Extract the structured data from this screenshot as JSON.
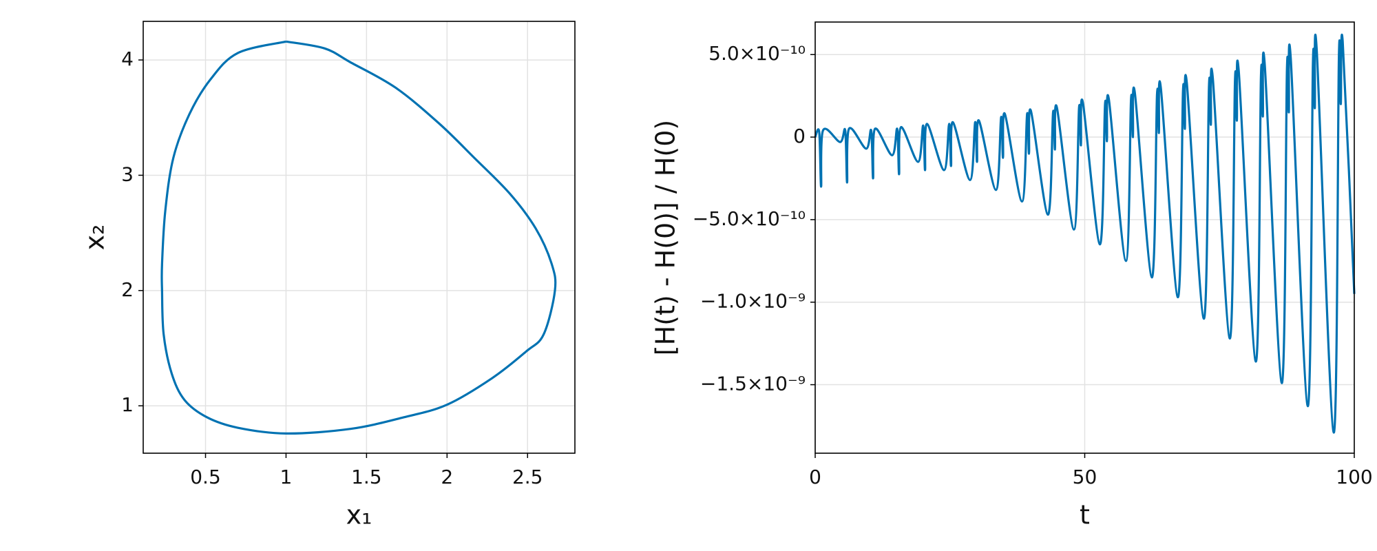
{
  "chart_data": [
    {
      "type": "line",
      "xlabel": "x₁",
      "ylabel": "x₂",
      "xlim": [
        0.113,
        2.794
      ],
      "ylim": [
        0.589,
        4.335
      ],
      "xticks": [
        0.5,
        1.0,
        1.5,
        2.0,
        2.5
      ],
      "yticks": [
        1,
        2,
        3,
        4
      ],
      "grid": true,
      "x": [
        1.0,
        0.7,
        0.53,
        0.4,
        0.3,
        0.25,
        0.23,
        0.23,
        0.24,
        0.29,
        0.37,
        0.51,
        0.7,
        1.0,
        1.4,
        1.73,
        2.0,
        2.28,
        2.49,
        2.6,
        2.67,
        2.65,
        2.55,
        2.39,
        2.17,
        1.95,
        1.68,
        1.4,
        1.24,
        1.0
      ],
      "series": [
        {
          "color": "#0072b2",
          "values": [
            4.16,
            4.06,
            3.83,
            3.53,
            3.15,
            2.69,
            2.23,
            2.0,
            1.62,
            1.28,
            1.05,
            0.9,
            0.81,
            0.76,
            0.8,
            0.9,
            1.01,
            1.24,
            1.47,
            1.62,
            2.0,
            2.23,
            2.54,
            2.84,
            3.15,
            3.45,
            3.76,
            3.98,
            4.1,
            4.16
          ]
        }
      ]
    },
    {
      "type": "line",
      "xlabel": "t",
      "ylabel": "[H(t) - H(0)] / H(0)",
      "xlim": [
        0,
        100
      ],
      "ylim": [
        -1.915e-09,
        6.97e-10
      ],
      "xticks": [
        0,
        50,
        100
      ],
      "yticks": [
        {
          "value": 5e-10,
          "label": "5.0×10⁻¹⁰"
        },
        0,
        {
          "value": -5e-10,
          "label": "−5.0×10⁻¹⁰"
        },
        {
          "value": -1e-09,
          "label": "−1.0×10⁻⁹"
        },
        {
          "value": -1.5e-09,
          "label": "−1.5×10⁻⁹"
        }
      ],
      "grid": true,
      "x": [
        0,
        0.75,
        1.1,
        1.45,
        4.62,
        5.57,
        5.92,
        6.27,
        9.44,
        10.39,
        10.74,
        11.09,
        14.26,
        15.21,
        15.56,
        15.91,
        19.08,
        20.03,
        20.38,
        20.73,
        23.9,
        24.85,
        25.2,
        25.55,
        28.72,
        29.67,
        30.02,
        30.37,
        33.54,
        34.49,
        34.84,
        35.19,
        38.36,
        39.31,
        39.66,
        40.01,
        43.18,
        44.13,
        44.48,
        44.83,
        48.0,
        48.95,
        49.3,
        49.65,
        52.82,
        53.77,
        54.12,
        54.47,
        57.64,
        58.59,
        58.94,
        59.29,
        62.46,
        63.41,
        63.76,
        64.11,
        67.28,
        68.23,
        68.58,
        68.93,
        72.1,
        73.05,
        73.4,
        73.75,
        76.92,
        77.87,
        78.22,
        78.57,
        81.74,
        82.69,
        83.04,
        83.39,
        86.56,
        87.51,
        87.86,
        88.21,
        91.38,
        92.33,
        92.68,
        93.03,
        96.2,
        97.15,
        97.5,
        97.85,
        100
      ],
      "series": [
        {
          "color": "#0072b2",
          "values": [
            0,
            3e-11,
            -3e-10,
            4e-11,
            -3e-11,
            4e-11,
            -2.75e-10,
            5e-11,
            -7e-11,
            4e-11,
            -2.5e-10,
            5e-11,
            -1.1e-10,
            5e-11,
            -2.25e-10,
            6e-11,
            -1.5e-10,
            7e-11,
            -2e-10,
            8e-11,
            -2e-10,
            8e-11,
            -1.75e-10,
            9e-11,
            -2.6e-10,
            9e-11,
            -1.5e-10,
            1e-10,
            -3.2e-10,
            1.2e-10,
            -1.25e-10,
            1.4e-10,
            -3.9e-10,
            1.4e-10,
            -1e-10,
            1.6e-10,
            -4.7e-10,
            1.5e-10,
            -7.5e-11,
            1.8e-10,
            -5.6e-10,
            1.8e-10,
            -5e-11,
            2.1e-10,
            -6.5e-10,
            2e-10,
            -2.5e-11,
            2.3e-10,
            -7.5e-10,
            2.3e-10,
            0,
            2.7e-10,
            -8.5e-10,
            2.6e-10,
            2.5e-11,
            3e-10,
            -9.7e-10,
            2.8e-10,
            5e-11,
            3.3e-10,
            -1.1e-09,
            3.1e-10,
            7.5e-11,
            3.6e-10,
            -1.22e-09,
            3.4e-10,
            1e-10,
            4e-10,
            -1.36e-09,
            3.7e-10,
            1.25e-10,
            4.4e-10,
            -1.49e-09,
            4.1e-10,
            1.5e-10,
            4.8e-10,
            -1.63e-09,
            4.5e-10,
            1.75e-10,
            5.3e-10,
            -1.79e-09,
            4.9e-10,
            2e-10,
            5.8e-10,
            -9.5e-10
          ]
        }
      ]
    }
  ]
}
